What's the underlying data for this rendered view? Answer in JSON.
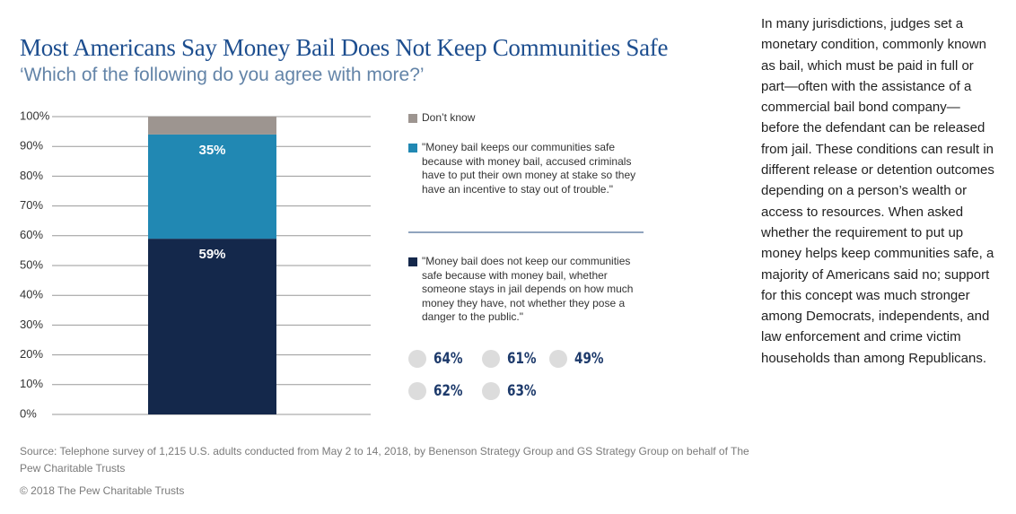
{
  "chart_data": {
    "type": "stacked_bar",
    "title": "Most Americans Say Money Bail Does Not Keep Communities Safe",
    "subtitle": "‘Which of the following do you agree with more?’",
    "categories": [
      null
    ],
    "series": [
      {
        "name": "\"Money bail does not keep our communities safe because with money bail, whether someone stays in jail depends on how much money they have, not whether they pose a danger to the public.\"",
        "color": "#14284b",
        "values": [
          59
        ],
        "value_labels": [
          "59%"
        ]
      },
      {
        "name": "\"Money bail keeps our communities safe because with money bail, accused criminals have to put their own money at stake so they have an incentive to stay out of trouble.\"",
        "color": "#2188b3",
        "values": [
          35
        ],
        "value_labels": [
          "35%"
        ]
      },
      {
        "name": "Don’t know",
        "color": "#9d9590",
        "values": [
          6
        ]
      }
    ],
    "ylim": [
      0,
      100
    ],
    "yticks": [
      {
        "value": 0,
        "label": "0%"
      },
      {
        "value": 10,
        "label": "10%"
      },
      {
        "value": 20,
        "label": "20%"
      },
      {
        "value": 30,
        "label": "30%"
      },
      {
        "value": 40,
        "label": "40%"
      },
      {
        "value": 50,
        "label": "50%"
      },
      {
        "value": 60,
        "label": "60%"
      },
      {
        "value": 70,
        "label": "70%"
      },
      {
        "value": 80,
        "label": "80%"
      },
      {
        "value": 90,
        "label": "90%"
      },
      {
        "value": 100,
        "label": "100%"
      }
    ],
    "grid": true,
    "group_results": [
      "64%",
      "61%",
      "49%",
      "62%",
      "63%"
    ]
  },
  "sidebar": "In many jurisdictions, judges set a monetary condition, commonly known as bail, which must be paid in full or part—often with the assistance of a commercial bail bond company—before the defendant can be released from jail. These conditions can result in different release or detention outcomes depending on a person’s wealth or access to resources. When asked whether the requirement to put up money helps keep communities safe, a majority of Americans said no; support for this concept was much stronger among Democrats, independents, and law enforcement and crime victim households than among Republicans.",
  "source": "Source: Telephone survey of 1,215 U.S. adults conducted from May 2 to 14, 2018, by Benenson Strategy Group and GS Strategy Group on behalf of The Pew Charitable Trusts",
  "copyright": "© 2018 The Pew Charitable Trusts"
}
